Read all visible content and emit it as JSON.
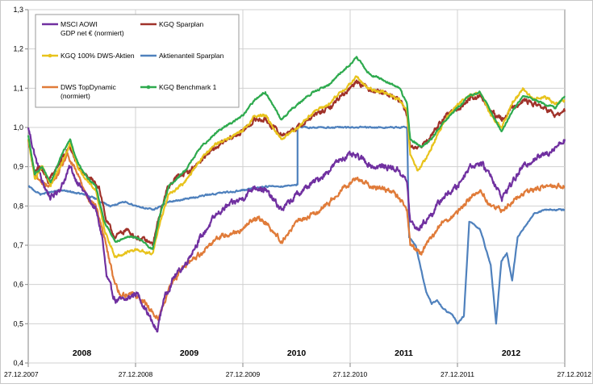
{
  "chart_data": {
    "type": "line",
    "ylim": [
      0.4,
      1.3
    ],
    "y_ticks": [
      "0,4",
      "0,5",
      "0,6",
      "0,7",
      "0,8",
      "0,9",
      "1,0",
      "1,1",
      "1,2",
      "1,3"
    ],
    "x_ticks": [
      "27.12.2007",
      "27.12.2008",
      "27.12.2009",
      "27.12.2010",
      "27.12.2011",
      "27.12.2012"
    ],
    "year_labels": [
      "2008",
      "2009",
      "2010",
      "2011",
      "2012"
    ],
    "x_range": [
      2007.99,
      2012.99
    ],
    "grid": true,
    "legend_position": "top-left",
    "series": [
      {
        "name": "MSCI AOWI GDP net € (normiert)",
        "legend_lines": [
          "MSCI AOWI",
          "GDP net € (normiert)"
        ],
        "color": "#7030A0",
        "noise": 0.012,
        "points": [
          [
            2007.99,
            1.0
          ],
          [
            2008.05,
            0.93
          ],
          [
            2008.12,
            0.86
          ],
          [
            2008.2,
            0.82
          ],
          [
            2008.3,
            0.85
          ],
          [
            2008.38,
            0.9
          ],
          [
            2008.45,
            0.86
          ],
          [
            2008.55,
            0.82
          ],
          [
            2008.62,
            0.79
          ],
          [
            2008.68,
            0.72
          ],
          [
            2008.72,
            0.62
          ],
          [
            2008.8,
            0.56
          ],
          [
            2008.9,
            0.56
          ],
          [
            2009.0,
            0.58
          ],
          [
            2009.08,
            0.54
          ],
          [
            2009.15,
            0.5
          ],
          [
            2009.19,
            0.48
          ],
          [
            2009.25,
            0.56
          ],
          [
            2009.35,
            0.62
          ],
          [
            2009.45,
            0.65
          ],
          [
            2009.55,
            0.7
          ],
          [
            2009.65,
            0.74
          ],
          [
            2009.75,
            0.78
          ],
          [
            2009.85,
            0.8
          ],
          [
            2009.99,
            0.82
          ],
          [
            2010.1,
            0.85
          ],
          [
            2010.2,
            0.84
          ],
          [
            2010.35,
            0.79
          ],
          [
            2010.5,
            0.83
          ],
          [
            2010.6,
            0.85
          ],
          [
            2010.75,
            0.88
          ],
          [
            2010.9,
            0.92
          ],
          [
            2010.99,
            0.93
          ],
          [
            2011.1,
            0.92
          ],
          [
            2011.2,
            0.9
          ],
          [
            2011.35,
            0.9
          ],
          [
            2011.45,
            0.89
          ],
          [
            2011.52,
            0.86
          ],
          [
            2011.55,
            0.76
          ],
          [
            2011.62,
            0.74
          ],
          [
            2011.75,
            0.78
          ],
          [
            2011.85,
            0.82
          ],
          [
            2011.99,
            0.85
          ],
          [
            2012.1,
            0.9
          ],
          [
            2012.2,
            0.91
          ],
          [
            2012.3,
            0.88
          ],
          [
            2012.4,
            0.82
          ],
          [
            2012.5,
            0.86
          ],
          [
            2012.6,
            0.9
          ],
          [
            2012.7,
            0.92
          ],
          [
            2012.8,
            0.93
          ],
          [
            2012.9,
            0.95
          ],
          [
            2012.99,
            0.97
          ]
        ]
      },
      {
        "name": "KGQ Sparplan",
        "legend_lines": [
          "KGQ Sparplan"
        ],
        "color": "#A0322A",
        "noise": 0.01,
        "points": [
          [
            2007.99,
            0.97
          ],
          [
            2008.05,
            0.88
          ],
          [
            2008.1,
            0.9
          ],
          [
            2008.18,
            0.86
          ],
          [
            2008.3,
            0.92
          ],
          [
            2008.38,
            0.95
          ],
          [
            2008.45,
            0.9
          ],
          [
            2008.55,
            0.87
          ],
          [
            2008.65,
            0.85
          ],
          [
            2008.72,
            0.76
          ],
          [
            2008.8,
            0.72
          ],
          [
            2008.9,
            0.74
          ],
          [
            2009.0,
            0.72
          ],
          [
            2009.1,
            0.71
          ],
          [
            2009.15,
            0.7
          ],
          [
            2009.2,
            0.76
          ],
          [
            2009.28,
            0.84
          ],
          [
            2009.35,
            0.87
          ],
          [
            2009.5,
            0.89
          ],
          [
            2009.65,
            0.93
          ],
          [
            2009.8,
            0.96
          ],
          [
            2009.99,
            0.99
          ],
          [
            2010.1,
            1.02
          ],
          [
            2010.2,
            1.02
          ],
          [
            2010.35,
            0.98
          ],
          [
            2010.5,
            1.0
          ],
          [
            2010.65,
            1.03
          ],
          [
            2010.8,
            1.05
          ],
          [
            2010.9,
            1.08
          ],
          [
            2010.99,
            1.1
          ],
          [
            2011.05,
            1.12
          ],
          [
            2011.15,
            1.1
          ],
          [
            2011.3,
            1.09
          ],
          [
            2011.45,
            1.07
          ],
          [
            2011.52,
            1.03
          ],
          [
            2011.55,
            0.95
          ],
          [
            2011.65,
            0.95
          ],
          [
            2011.75,
            0.98
          ],
          [
            2011.85,
            1.02
          ],
          [
            2011.99,
            1.05
          ],
          [
            2012.1,
            1.07
          ],
          [
            2012.2,
            1.08
          ],
          [
            2012.3,
            1.04
          ],
          [
            2012.4,
            1.02
          ],
          [
            2012.5,
            1.05
          ],
          [
            2012.6,
            1.07
          ],
          [
            2012.7,
            1.06
          ],
          [
            2012.8,
            1.05
          ],
          [
            2012.9,
            1.03
          ],
          [
            2012.99,
            1.04
          ]
        ]
      },
      {
        "name": "KGQ 100% DWS-Aktien",
        "legend_lines": [
          "KGQ 100% DWS-Aktien"
        ],
        "color": "#E8C31C",
        "noise": 0.006,
        "points": [
          [
            2007.99,
            0.97
          ],
          [
            2008.05,
            0.87
          ],
          [
            2008.12,
            0.9
          ],
          [
            2008.2,
            0.85
          ],
          [
            2008.3,
            0.91
          ],
          [
            2008.38,
            0.96
          ],
          [
            2008.45,
            0.9
          ],
          [
            2008.55,
            0.86
          ],
          [
            2008.62,
            0.84
          ],
          [
            2008.7,
            0.74
          ],
          [
            2008.8,
            0.67
          ],
          [
            2008.9,
            0.68
          ],
          [
            2009.0,
            0.69
          ],
          [
            2009.1,
            0.68
          ],
          [
            2009.15,
            0.68
          ],
          [
            2009.22,
            0.76
          ],
          [
            2009.3,
            0.83
          ],
          [
            2009.45,
            0.86
          ],
          [
            2009.6,
            0.92
          ],
          [
            2009.75,
            0.96
          ],
          [
            2009.99,
            0.99
          ],
          [
            2010.1,
            1.03
          ],
          [
            2010.2,
            1.03
          ],
          [
            2010.35,
            0.97
          ],
          [
            2010.5,
            1.0
          ],
          [
            2010.65,
            1.04
          ],
          [
            2010.8,
            1.06
          ],
          [
            2010.9,
            1.09
          ],
          [
            2010.99,
            1.11
          ],
          [
            2011.05,
            1.13
          ],
          [
            2011.15,
            1.1
          ],
          [
            2011.3,
            1.09
          ],
          [
            2011.45,
            1.07
          ],
          [
            2011.52,
            1.04
          ],
          [
            2011.55,
            0.93
          ],
          [
            2011.62,
            0.89
          ],
          [
            2011.7,
            0.92
          ],
          [
            2011.8,
            0.98
          ],
          [
            2011.9,
            1.03
          ],
          [
            2011.99,
            1.06
          ],
          [
            2012.1,
            1.08
          ],
          [
            2012.2,
            1.09
          ],
          [
            2012.3,
            1.03
          ],
          [
            2012.4,
            1.0
          ],
          [
            2012.5,
            1.06
          ],
          [
            2012.6,
            1.1
          ],
          [
            2012.7,
            1.07
          ],
          [
            2012.8,
            1.08
          ],
          [
            2012.9,
            1.06
          ],
          [
            2012.99,
            1.07
          ]
        ]
      },
      {
        "name": "Aktienanteil Sparplan",
        "legend_lines": [
          "Aktienanteil Sparplan"
        ],
        "color": "#4F81BD",
        "noise": 0.003,
        "points": [
          [
            2007.99,
            0.85
          ],
          [
            2008.1,
            0.83
          ],
          [
            2008.3,
            0.84
          ],
          [
            2008.5,
            0.83
          ],
          [
            2008.6,
            0.82
          ],
          [
            2008.75,
            0.8
          ],
          [
            2008.9,
            0.81
          ],
          [
            2009.0,
            0.8
          ],
          [
            2009.15,
            0.79
          ],
          [
            2009.3,
            0.81
          ],
          [
            2009.5,
            0.82
          ],
          [
            2009.7,
            0.83
          ],
          [
            2009.99,
            0.84
          ],
          [
            2010.2,
            0.85
          ],
          [
            2010.35,
            0.85
          ],
          [
            2010.5,
            0.855
          ],
          [
            2010.5,
            1.0
          ],
          [
            2010.99,
            1.0
          ],
          [
            2011.52,
            1.0
          ],
          [
            2011.54,
            0.72
          ],
          [
            2011.6,
            0.7
          ],
          [
            2011.7,
            0.58
          ],
          [
            2011.75,
            0.55
          ],
          [
            2011.8,
            0.56
          ],
          [
            2011.85,
            0.54
          ],
          [
            2011.95,
            0.52
          ],
          [
            2011.99,
            0.5
          ],
          [
            2012.05,
            0.52
          ],
          [
            2012.1,
            0.76
          ],
          [
            2012.2,
            0.74
          ],
          [
            2012.3,
            0.65
          ],
          [
            2012.35,
            0.5
          ],
          [
            2012.4,
            0.66
          ],
          [
            2012.45,
            0.68
          ],
          [
            2012.5,
            0.61
          ],
          [
            2012.55,
            0.72
          ],
          [
            2012.65,
            0.76
          ],
          [
            2012.7,
            0.78
          ],
          [
            2012.8,
            0.79
          ],
          [
            2012.99,
            0.79
          ]
        ]
      },
      {
        "name": "DWS TopDynamic (normiert)",
        "legend_lines": [
          "DWS TopDynamic",
          "(normiert)"
        ],
        "color": "#E07B39",
        "noise": 0.01,
        "points": [
          [
            2007.99,
            0.97
          ],
          [
            2008.05,
            0.88
          ],
          [
            2008.15,
            0.85
          ],
          [
            2008.25,
            0.87
          ],
          [
            2008.35,
            0.93
          ],
          [
            2008.45,
            0.88
          ],
          [
            2008.55,
            0.82
          ],
          [
            2008.62,
            0.8
          ],
          [
            2008.7,
            0.72
          ],
          [
            2008.78,
            0.62
          ],
          [
            2008.85,
            0.57
          ],
          [
            2008.95,
            0.58
          ],
          [
            2009.05,
            0.56
          ],
          [
            2009.15,
            0.53
          ],
          [
            2009.2,
            0.51
          ],
          [
            2009.3,
            0.59
          ],
          [
            2009.45,
            0.65
          ],
          [
            2009.6,
            0.68
          ],
          [
            2009.75,
            0.72
          ],
          [
            2009.99,
            0.74
          ],
          [
            2010.1,
            0.77
          ],
          [
            2010.2,
            0.76
          ],
          [
            2010.35,
            0.71
          ],
          [
            2010.5,
            0.76
          ],
          [
            2010.65,
            0.78
          ],
          [
            2010.8,
            0.81
          ],
          [
            2010.9,
            0.84
          ],
          [
            2010.99,
            0.86
          ],
          [
            2011.05,
            0.87
          ],
          [
            2011.2,
            0.85
          ],
          [
            2011.35,
            0.84
          ],
          [
            2011.45,
            0.82
          ],
          [
            2011.52,
            0.79
          ],
          [
            2011.55,
            0.7
          ],
          [
            2011.65,
            0.68
          ],
          [
            2011.75,
            0.72
          ],
          [
            2011.85,
            0.76
          ],
          [
            2011.99,
            0.78
          ],
          [
            2012.1,
            0.82
          ],
          [
            2012.2,
            0.84
          ],
          [
            2012.3,
            0.8
          ],
          [
            2012.4,
            0.79
          ],
          [
            2012.5,
            0.81
          ],
          [
            2012.6,
            0.83
          ],
          [
            2012.7,
            0.84
          ],
          [
            2012.8,
            0.85
          ],
          [
            2012.9,
            0.85
          ],
          [
            2012.99,
            0.85
          ]
        ]
      },
      {
        "name": "KGQ Benchmark 1",
        "legend_lines": [
          "KGQ Benchmark 1"
        ],
        "color": "#2EAA4E",
        "noise": 0.004,
        "points": [
          [
            2007.99,
            0.98
          ],
          [
            2008.05,
            0.88
          ],
          [
            2008.12,
            0.9
          ],
          [
            2008.2,
            0.86
          ],
          [
            2008.3,
            0.93
          ],
          [
            2008.38,
            0.97
          ],
          [
            2008.45,
            0.91
          ],
          [
            2008.55,
            0.87
          ],
          [
            2008.62,
            0.85
          ],
          [
            2008.7,
            0.76
          ],
          [
            2008.8,
            0.71
          ],
          [
            2008.9,
            0.72
          ],
          [
            2009.0,
            0.72
          ],
          [
            2009.1,
            0.7
          ],
          [
            2009.15,
            0.69
          ],
          [
            2009.22,
            0.78
          ],
          [
            2009.3,
            0.85
          ],
          [
            2009.45,
            0.89
          ],
          [
            2009.6,
            0.95
          ],
          [
            2009.75,
            0.99
          ],
          [
            2009.99,
            1.03
          ],
          [
            2010.1,
            1.07
          ],
          [
            2010.2,
            1.09
          ],
          [
            2010.35,
            1.02
          ],
          [
            2010.5,
            1.06
          ],
          [
            2010.65,
            1.09
          ],
          [
            2010.8,
            1.11
          ],
          [
            2010.9,
            1.14
          ],
          [
            2010.99,
            1.16
          ],
          [
            2011.05,
            1.18
          ],
          [
            2011.15,
            1.14
          ],
          [
            2011.3,
            1.12
          ],
          [
            2011.45,
            1.1
          ],
          [
            2011.52,
            1.06
          ],
          [
            2011.55,
            0.97
          ],
          [
            2011.65,
            0.95
          ],
          [
            2011.75,
            0.97
          ],
          [
            2011.85,
            1.01
          ],
          [
            2011.99,
            1.05
          ],
          [
            2012.1,
            1.08
          ],
          [
            2012.2,
            1.09
          ],
          [
            2012.3,
            1.04
          ],
          [
            2012.4,
            0.99
          ],
          [
            2012.5,
            1.04
          ],
          [
            2012.6,
            1.08
          ],
          [
            2012.7,
            1.07
          ],
          [
            2012.8,
            1.06
          ],
          [
            2012.9,
            1.05
          ],
          [
            2012.99,
            1.08
          ]
        ]
      }
    ]
  }
}
